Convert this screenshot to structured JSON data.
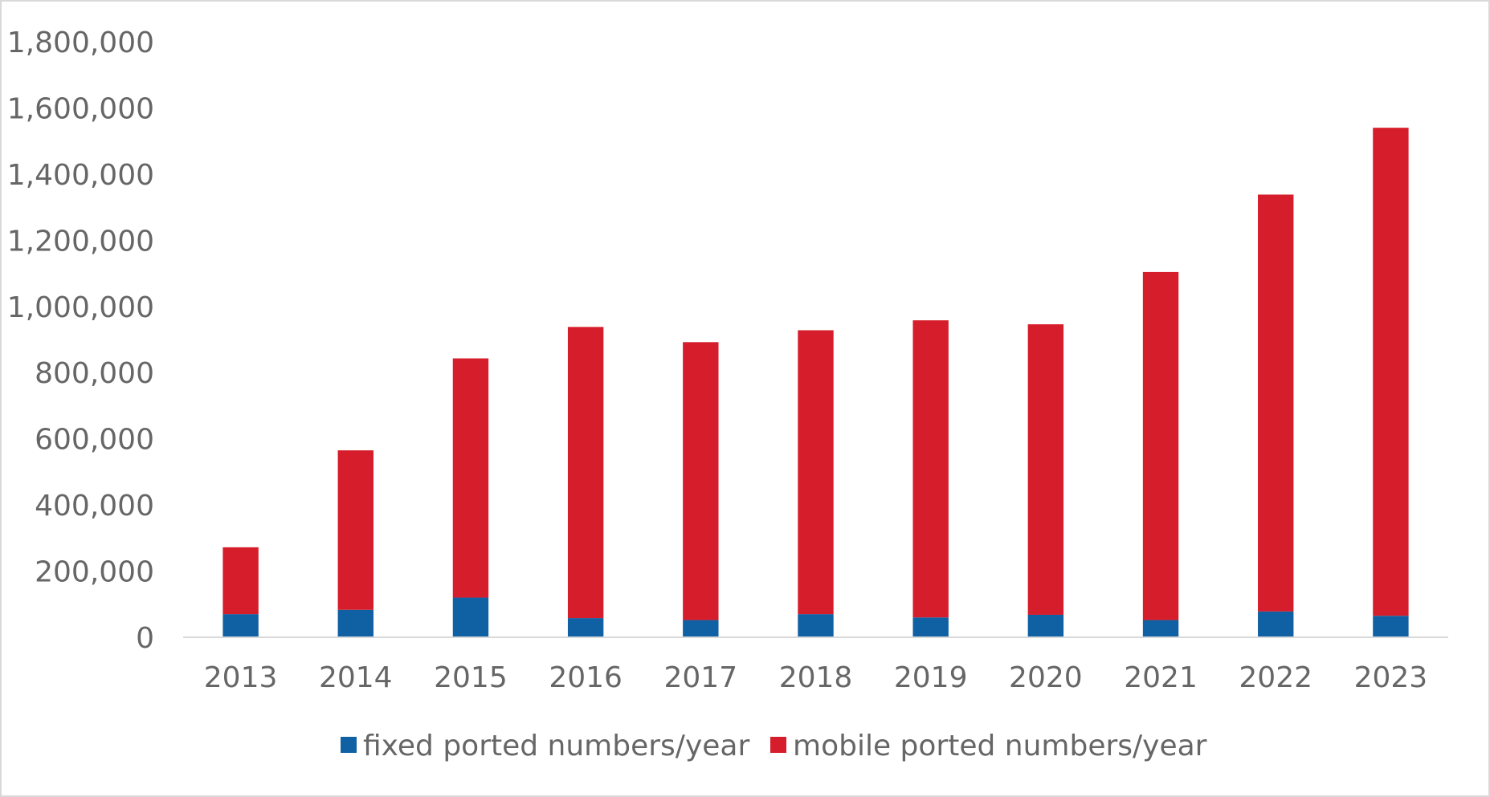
{
  "chart_data": {
    "type": "bar",
    "stacked": true,
    "categories": [
      "2013",
      "2014",
      "2015",
      "2016",
      "2017",
      "2018",
      "2019",
      "2020",
      "2021",
      "2022",
      "2023"
    ],
    "series": [
      {
        "name": "fixed ported numbers/year",
        "color": "#1060a4",
        "values": [
          70000,
          83000,
          120000,
          58000,
          52000,
          70000,
          60000,
          68000,
          52000,
          78000,
          65000
        ]
      },
      {
        "name": "mobile ported numbers/year",
        "color": "#d61d2b",
        "values": [
          202000,
          482000,
          723000,
          880000,
          840000,
          858000,
          898000,
          878000,
          1052000,
          1260000,
          1475000
        ]
      }
    ],
    "yticks": [
      "0",
      "200,000",
      "400,000",
      "600,000",
      "800,000",
      "1,000,000",
      "1,200,000",
      "1,400,000",
      "1,600,000",
      "1,800,000"
    ],
    "ylim": [
      0,
      1800000
    ],
    "grid": false,
    "legend": "bottom"
  }
}
